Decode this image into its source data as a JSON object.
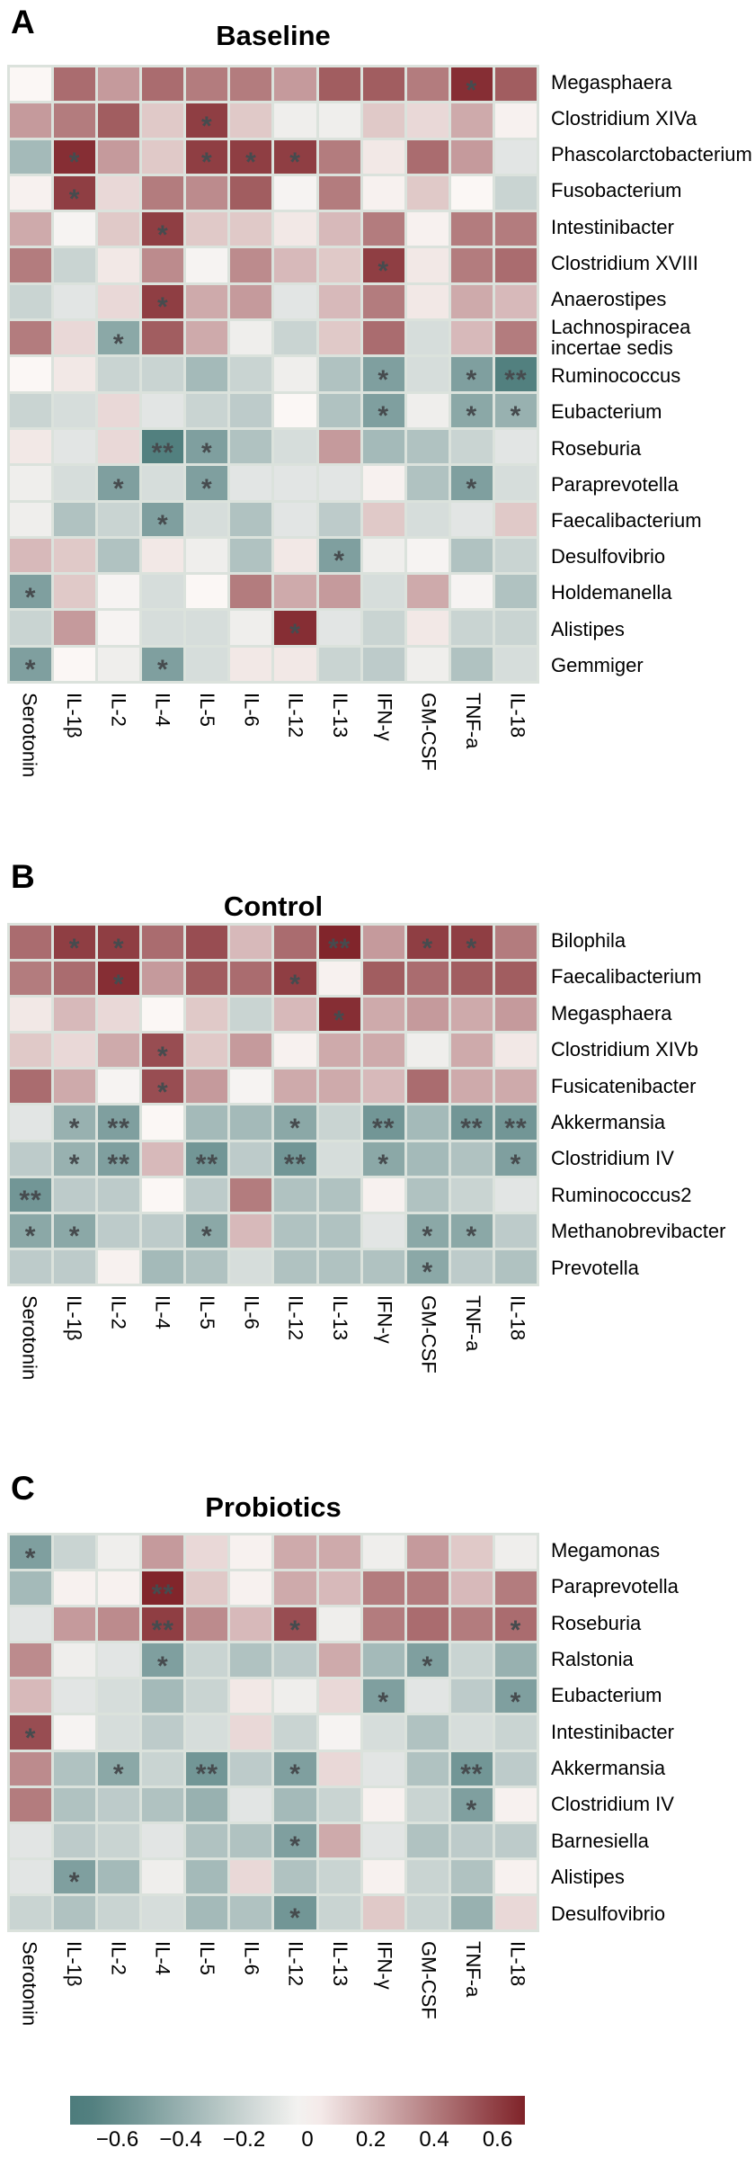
{
  "figure": {
    "panels": [
      {
        "letter": "A",
        "title": "Baseline"
      },
      {
        "letter": "B",
        "title": "Control"
      },
      {
        "letter": "C",
        "title": "Probiotics"
      }
    ],
    "colorbar": {
      "tick_values": [
        -0.6,
        -0.4,
        -0.2,
        0,
        0.2,
        0.4,
        0.6
      ],
      "tick_labels": [
        "−0.6",
        "−0.4",
        "−0.2",
        "0",
        "0.2",
        "0.4",
        "0.6"
      ],
      "scale_min": -0.7,
      "scale_max": 0.7,
      "negative_end_color": "#4d7c7c",
      "midpoint_color": "#fbf7f5",
      "positive_end_color": "#7d1f25"
    },
    "significance_markers": {
      "p_low": "*",
      "p_lower": "**",
      "marker_color": "#464b4e"
    },
    "grid_gap_color": "#dbe2dc"
  },
  "chart_data": [
    {
      "type": "heatmap",
      "panel": "A",
      "title": "Baseline",
      "x_categories": [
        "Serotonin",
        "IL-1β",
        "IL-2",
        "IL-4",
        "IL-5",
        "IL-6",
        "IL-12",
        "IL-13",
        "IFN-γ",
        "GM-CSF",
        "TNF-a",
        "IL-18"
      ],
      "y_categories": [
        "Megasphaera",
        "Clostridium XIVa",
        "Phascolarctobacterium",
        "Fusobacterium",
        "Intestinibacter",
        "Clostridium XVIII",
        "Anaerostipes",
        "Lachnospiracea incertae sedis",
        "Ruminococcus",
        "Eubacterium",
        "Roseburia",
        "Paraprevotella",
        "Faecalibacterium",
        "Desulfovibrio",
        "Holdemanella",
        "Alistipes",
        "Gemmiger"
      ],
      "values": [
        [
          0.0,
          0.45,
          0.3,
          0.45,
          0.4,
          0.4,
          0.3,
          0.5,
          0.5,
          0.4,
          0.65,
          0.5
        ],
        [
          0.3,
          0.4,
          0.5,
          0.15,
          0.6,
          0.15,
          -0.05,
          -0.05,
          0.15,
          0.1,
          0.25,
          0.02
        ],
        [
          -0.35,
          0.65,
          0.3,
          0.15,
          0.6,
          0.6,
          0.6,
          0.4,
          0.05,
          0.45,
          0.3,
          -0.1
        ],
        [
          0.02,
          0.6,
          0.1,
          0.4,
          0.35,
          0.5,
          -0.02,
          0.4,
          0.02,
          0.15,
          0.0,
          -0.2
        ],
        [
          0.25,
          -0.02,
          0.15,
          0.6,
          0.15,
          0.15,
          0.05,
          0.2,
          0.4,
          0.02,
          0.4,
          0.4
        ],
        [
          0.4,
          -0.2,
          0.05,
          0.35,
          -0.02,
          0.35,
          0.2,
          0.15,
          0.6,
          0.05,
          0.4,
          0.45
        ],
        [
          -0.2,
          -0.1,
          0.1,
          0.6,
          0.25,
          0.3,
          -0.1,
          0.2,
          0.4,
          0.05,
          0.25,
          0.2
        ],
        [
          0.4,
          0.1,
          -0.45,
          0.5,
          0.25,
          -0.05,
          -0.2,
          0.15,
          0.45,
          -0.15,
          0.2,
          0.4
        ],
        [
          0.0,
          0.05,
          -0.2,
          -0.2,
          -0.35,
          -0.2,
          -0.05,
          -0.3,
          -0.5,
          -0.15,
          -0.5,
          -0.68
        ],
        [
          -0.2,
          -0.15,
          0.1,
          -0.1,
          -0.2,
          -0.25,
          0.0,
          -0.3,
          -0.5,
          -0.05,
          -0.45,
          -0.4
        ],
        [
          0.05,
          -0.1,
          0.1,
          -0.68,
          -0.5,
          -0.3,
          -0.15,
          0.3,
          -0.35,
          -0.3,
          -0.2,
          -0.1
        ],
        [
          -0.05,
          -0.15,
          -0.5,
          -0.15,
          -0.5,
          -0.1,
          -0.1,
          -0.1,
          0.02,
          -0.3,
          -0.5,
          -0.15
        ],
        [
          -0.05,
          -0.3,
          -0.2,
          -0.5,
          -0.15,
          -0.3,
          -0.1,
          -0.25,
          0.15,
          -0.15,
          -0.1,
          0.15
        ],
        [
          0.2,
          0.15,
          -0.3,
          0.05,
          -0.05,
          -0.3,
          0.05,
          -0.5,
          -0.05,
          -0.02,
          -0.3,
          -0.2
        ],
        [
          -0.5,
          0.15,
          -0.02,
          -0.15,
          0.0,
          0.4,
          0.25,
          0.3,
          -0.15,
          0.25,
          -0.02,
          -0.3
        ],
        [
          -0.2,
          0.3,
          -0.02,
          -0.15,
          -0.15,
          -0.05,
          0.65,
          -0.1,
          -0.2,
          0.05,
          -0.2,
          -0.2
        ],
        [
          -0.5,
          0.0,
          -0.05,
          -0.5,
          -0.15,
          0.05,
          0.05,
          -0.2,
          -0.25,
          -0.05,
          -0.3,
          -0.15
        ]
      ],
      "significance": [
        [
          "",
          "",
          "",
          "",
          "",
          "",
          "",
          "",
          "",
          "",
          "*",
          ""
        ],
        [
          "",
          "",
          "",
          "",
          "*",
          "",
          "",
          "",
          "",
          "",
          "",
          ""
        ],
        [
          "",
          "*",
          "",
          "",
          "*",
          "*",
          "*",
          "",
          "",
          "",
          "",
          ""
        ],
        [
          "",
          "*",
          "",
          "",
          "",
          "",
          "",
          "",
          "",
          "",
          "",
          ""
        ],
        [
          "",
          "",
          "",
          "*",
          "",
          "",
          "",
          "",
          "",
          "",
          "",
          ""
        ],
        [
          "",
          "",
          "",
          "",
          "",
          "",
          "",
          "",
          "*",
          "",
          "",
          ""
        ],
        [
          "",
          "",
          "",
          "*",
          "",
          "",
          "",
          "",
          "",
          "",
          "",
          ""
        ],
        [
          "",
          "",
          "*",
          "",
          "",
          "",
          "",
          "",
          "",
          "",
          "",
          ""
        ],
        [
          "",
          "",
          "",
          "",
          "",
          "",
          "",
          "",
          "*",
          "",
          "*",
          "**"
        ],
        [
          "",
          "",
          "",
          "",
          "",
          "",
          "",
          "",
          "*",
          "",
          "*",
          "*"
        ],
        [
          "",
          "",
          "",
          "**",
          "*",
          "",
          "",
          "",
          "",
          "",
          "",
          ""
        ],
        [
          "",
          "",
          "*",
          "",
          "*",
          "",
          "",
          "",
          "",
          "",
          "*",
          ""
        ],
        [
          "",
          "",
          "",
          "*",
          "",
          "",
          "",
          "",
          "",
          "",
          "",
          ""
        ],
        [
          "",
          "",
          "",
          "",
          "",
          "",
          "",
          "*",
          "",
          "",
          "",
          ""
        ],
        [
          "*",
          "",
          "",
          "",
          "",
          "",
          "",
          "",
          "",
          "",
          "",
          ""
        ],
        [
          "",
          "",
          "",
          "",
          "",
          "",
          "*",
          "",
          "",
          "",
          "",
          ""
        ],
        [
          "*",
          "",
          "",
          "*",
          "",
          "",
          "",
          "",
          "",
          "",
          "",
          ""
        ]
      ]
    },
    {
      "type": "heatmap",
      "panel": "B",
      "title": "Control",
      "x_categories": [
        "Serotonin",
        "IL-1β",
        "IL-2",
        "IL-4",
        "IL-5",
        "IL-6",
        "IL-12",
        "IL-13",
        "IFN-γ",
        "GM-CSF",
        "TNF-a",
        "IL-18"
      ],
      "y_categories": [
        "Bilophila",
        "Faecalibacterium",
        "Megasphaera",
        "Clostridium XIVb",
        "Fusicatenibacter",
        "Akkermansia",
        "Clostridium IV",
        "Ruminococcus2",
        "Methanobrevibacter",
        "Prevotella"
      ],
      "values": [
        [
          0.45,
          0.6,
          0.6,
          0.45,
          0.55,
          0.2,
          0.45,
          0.68,
          0.3,
          0.6,
          0.6,
          0.4
        ],
        [
          0.4,
          0.45,
          0.65,
          0.3,
          0.5,
          0.45,
          0.6,
          0.02,
          0.5,
          0.45,
          0.5,
          0.5
        ],
        [
          0.05,
          0.2,
          0.1,
          0.0,
          0.15,
          -0.2,
          0.2,
          0.65,
          0.25,
          0.3,
          0.25,
          0.3
        ],
        [
          0.15,
          0.1,
          0.25,
          0.55,
          0.15,
          0.3,
          0.02,
          0.25,
          0.25,
          -0.05,
          0.25,
          0.05
        ],
        [
          0.45,
          0.25,
          -0.02,
          0.55,
          0.3,
          -0.02,
          0.25,
          0.25,
          0.2,
          0.45,
          0.25,
          0.25
        ],
        [
          -0.1,
          -0.4,
          -0.5,
          0.0,
          -0.35,
          -0.35,
          -0.45,
          -0.2,
          -0.55,
          -0.35,
          -0.55,
          -0.55
        ],
        [
          -0.25,
          -0.4,
          -0.5,
          0.2,
          -0.55,
          -0.25,
          -0.55,
          -0.15,
          -0.45,
          -0.35,
          -0.3,
          -0.5
        ],
        [
          -0.55,
          -0.25,
          -0.25,
          0.0,
          -0.25,
          0.4,
          -0.3,
          -0.3,
          0.02,
          -0.3,
          -0.2,
          -0.1
        ],
        [
          -0.45,
          -0.45,
          -0.25,
          -0.25,
          -0.45,
          0.2,
          -0.3,
          -0.3,
          -0.1,
          -0.45,
          -0.45,
          -0.25
        ],
        [
          -0.25,
          -0.25,
          0.02,
          -0.35,
          -0.3,
          -0.15,
          -0.3,
          -0.3,
          -0.3,
          -0.45,
          -0.25,
          -0.3
        ]
      ],
      "significance": [
        [
          "",
          "*",
          "*",
          "",
          "",
          "",
          "",
          "**",
          "",
          "*",
          "*",
          ""
        ],
        [
          "",
          "",
          "*",
          "",
          "",
          "",
          "*",
          "",
          "",
          "",
          "",
          ""
        ],
        [
          "",
          "",
          "",
          "",
          "",
          "",
          "",
          "*",
          "",
          "",
          "",
          ""
        ],
        [
          "",
          "",
          "",
          "*",
          "",
          "",
          "",
          "",
          "",
          "",
          "",
          ""
        ],
        [
          "",
          "",
          "",
          "*",
          "",
          "",
          "",
          "",
          "",
          "",
          "",
          ""
        ],
        [
          "",
          "*",
          "**",
          "",
          "",
          "",
          "*",
          "",
          "**",
          "",
          "**",
          "**"
        ],
        [
          "",
          "*",
          "**",
          "",
          "**",
          "",
          "**",
          "",
          "*",
          "",
          "",
          "*"
        ],
        [
          "**",
          "",
          "",
          "",
          "",
          "",
          "",
          "",
          "",
          "",
          "",
          ""
        ],
        [
          "*",
          "*",
          "",
          "",
          "*",
          "",
          "",
          "",
          "",
          "*",
          "*",
          ""
        ],
        [
          "",
          "",
          "",
          "",
          "",
          "",
          "",
          "",
          "",
          "*",
          "",
          ""
        ]
      ]
    },
    {
      "type": "heatmap",
      "panel": "C",
      "title": "Probiotics",
      "x_categories": [
        "Serotonin",
        "IL-1β",
        "IL-2",
        "IL-4",
        "IL-5",
        "IL-6",
        "IL-12",
        "IL-13",
        "IFN-γ",
        "GM-CSF",
        "TNF-a",
        "IL-18"
      ],
      "y_categories": [
        "Megamonas",
        "Paraprevotella",
        "Roseburia",
        "Ralstonia",
        "Eubacterium",
        "Intestinibacter",
        "Akkermansia",
        "Clostridium IV",
        "Barnesiella",
        "Alistipes",
        "Desulfovibrio"
      ],
      "values": [
        [
          -0.5,
          -0.2,
          -0.05,
          0.3,
          0.1,
          0.02,
          0.25,
          0.25,
          -0.05,
          0.3,
          0.15,
          -0.05
        ],
        [
          -0.35,
          0.02,
          0.02,
          0.68,
          0.15,
          0.02,
          0.25,
          0.2,
          0.4,
          0.4,
          0.2,
          0.4
        ],
        [
          -0.1,
          0.3,
          0.35,
          0.6,
          0.35,
          0.2,
          0.55,
          -0.05,
          0.4,
          0.45,
          0.4,
          0.45
        ],
        [
          0.35,
          -0.05,
          -0.1,
          -0.5,
          -0.2,
          -0.3,
          -0.25,
          0.25,
          -0.35,
          -0.5,
          -0.2,
          -0.4
        ],
        [
          0.2,
          -0.1,
          -0.15,
          -0.35,
          -0.2,
          0.05,
          -0.05,
          0.1,
          -0.5,
          -0.1,
          -0.25,
          -0.5
        ],
        [
          0.55,
          -0.02,
          -0.15,
          -0.25,
          -0.15,
          0.1,
          -0.2,
          -0.02,
          -0.15,
          -0.3,
          -0.15,
          -0.2
        ],
        [
          0.35,
          -0.3,
          -0.45,
          -0.2,
          -0.55,
          -0.25,
          -0.5,
          0.1,
          -0.1,
          -0.3,
          -0.55,
          -0.25
        ],
        [
          0.4,
          -0.3,
          -0.25,
          -0.3,
          -0.4,
          -0.1,
          -0.35,
          -0.2,
          0.02,
          -0.2,
          -0.5,
          0.02
        ],
        [
          -0.1,
          -0.25,
          -0.2,
          -0.1,
          -0.3,
          -0.3,
          -0.5,
          0.25,
          -0.1,
          -0.3,
          -0.25,
          -0.25
        ],
        [
          -0.1,
          -0.5,
          -0.35,
          -0.05,
          -0.35,
          0.1,
          -0.3,
          -0.2,
          0.02,
          -0.2,
          -0.3,
          0.02
        ],
        [
          -0.2,
          -0.3,
          -0.2,
          -0.15,
          -0.35,
          -0.3,
          -0.55,
          -0.2,
          0.15,
          -0.2,
          -0.4,
          0.1
        ]
      ],
      "significance": [
        [
          "*",
          "",
          "",
          "",
          "",
          "",
          "",
          "",
          "",
          "",
          "",
          ""
        ],
        [
          "",
          "",
          "",
          "**",
          "",
          "",
          "",
          "",
          "",
          "",
          "",
          ""
        ],
        [
          "",
          "",
          "",
          "**",
          "",
          "",
          "*",
          "",
          "",
          "",
          "",
          "*"
        ],
        [
          "",
          "",
          "",
          "*",
          "",
          "",
          "",
          "",
          "",
          "*",
          "",
          ""
        ],
        [
          "",
          "",
          "",
          "",
          "",
          "",
          "",
          "",
          "*",
          "",
          "",
          "*"
        ],
        [
          "*",
          "",
          "",
          "",
          "",
          "",
          "",
          "",
          "",
          "",
          "",
          ""
        ],
        [
          "",
          "",
          "*",
          "",
          "**",
          "",
          "*",
          "",
          "",
          "",
          "**",
          ""
        ],
        [
          "",
          "",
          "",
          "",
          "",
          "",
          "",
          "",
          "",
          "",
          "*",
          ""
        ],
        [
          "",
          "",
          "",
          "",
          "",
          "",
          "*",
          "",
          "",
          "",
          "",
          ""
        ],
        [
          "",
          "*",
          "",
          "",
          "",
          "",
          "",
          "",
          "",
          "",
          "",
          ""
        ],
        [
          "",
          "",
          "",
          "",
          "",
          "",
          "*",
          "",
          "",
          "",
          "",
          ""
        ]
      ]
    }
  ]
}
